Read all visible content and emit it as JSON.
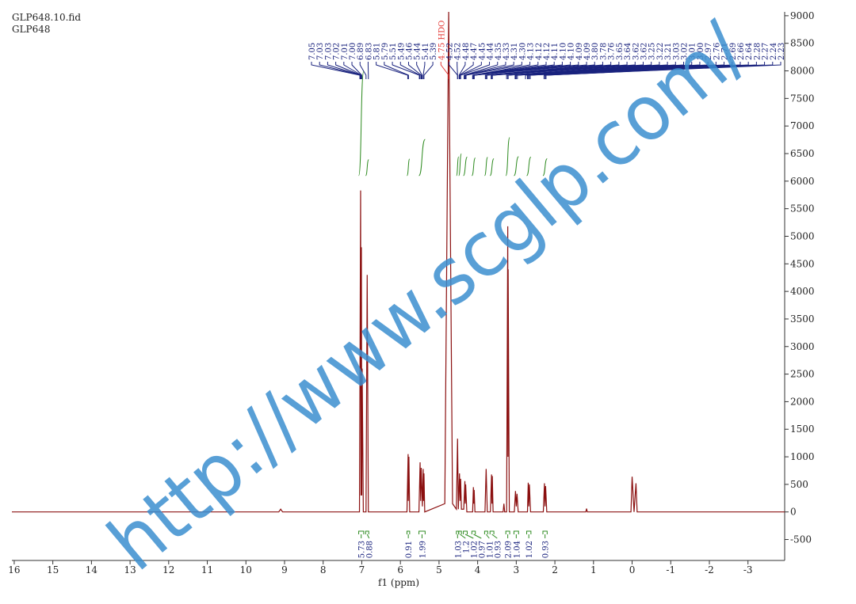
{
  "chart_data": {
    "type": "line",
    "title": "GLP648.10.fid",
    "subtitle": "GLP648",
    "x_label": "f1 (ppm)",
    "watermark": "http://www.scglp.com/",
    "xlim": [
      16.06,
      -3.95
    ],
    "xticks": [
      16,
      15,
      14,
      13,
      12,
      11,
      10,
      9,
      8,
      7,
      6,
      5,
      4,
      3,
      2,
      1,
      0,
      -1,
      -2,
      -3
    ],
    "ylim": [
      -880,
      9070
    ],
    "yticks": [
      -500,
      0,
      500,
      1000,
      1500,
      2000,
      2500,
      3000,
      3500,
      4000,
      4500,
      5000,
      5500,
      6000,
      6500,
      7000,
      7500,
      8000,
      8500,
      9000
    ],
    "series": [
      {
        "name": "GLP648",
        "color": "#8b1010",
        "x": [
          16.06,
          9.15,
          9.1,
          9.05,
          7.06,
          7.03,
          7.02,
          7.01,
          7.0,
          6.99,
          6.96,
          6.89,
          6.86,
          6.83,
          5.83,
          5.8,
          5.795,
          5.78,
          5.76,
          5.52,
          5.49,
          5.475,
          5.46,
          5.43,
          5.41,
          5.4,
          5.39,
          5.37,
          4.85,
          4.75,
          4.65,
          4.55,
          4.52,
          4.5,
          4.47,
          4.455,
          4.44,
          4.42,
          4.36,
          4.33,
          4.32,
          4.31,
          4.28,
          4.13,
          4.11,
          4.1,
          4.09,
          4.07,
          3.81,
          3.78,
          3.75,
          3.67,
          3.64,
          3.63,
          3.62,
          3.6,
          3.34,
          3.32,
          3.3,
          3.25,
          3.22,
          3.215,
          3.21,
          3.18,
          3.05,
          3.02,
          3.0,
          2.98,
          2.95,
          2.71,
          2.69,
          2.675,
          2.66,
          2.63,
          2.3,
          2.27,
          2.255,
          2.24,
          2.21,
          1.2,
          1.18,
          1.16,
          0.03,
          0.0,
          -0.05,
          -0.1,
          -0.13,
          -3.95
        ],
        "values": [
          0,
          0,
          50,
          0,
          0,
          5830,
          300,
          4800,
          300,
          2600,
          0,
          0,
          4300,
          0,
          0,
          1050,
          200,
          1000,
          0,
          0,
          900,
          200,
          800,
          100,
          780,
          200,
          700,
          0,
          150,
          9070,
          150,
          50,
          1330,
          50,
          700,
          200,
          600,
          50,
          50,
          560,
          150,
          500,
          0,
          0,
          450,
          150,
          400,
          0,
          0,
          780,
          0,
          0,
          680,
          150,
          650,
          0,
          0,
          150,
          0,
          0,
          5180,
          1000,
          4400,
          0,
          0,
          380,
          100,
          330,
          0,
          0,
          530,
          100,
          500,
          0,
          0,
          520,
          100,
          470,
          0,
          0,
          60,
          0,
          0,
          640,
          0,
          520,
          0,
          0
        ]
      }
    ],
    "peak_color": "#1a237e",
    "integral_color": "#2e8b20",
    "peaks": [
      {
        "value": 7.05,
        "label": "7.05"
      },
      {
        "value": 7.03,
        "label": "7.03"
      },
      {
        "value": 7.03,
        "label": "7.03"
      },
      {
        "value": 7.02,
        "label": "7.02"
      },
      {
        "value": 7.01,
        "label": "7.01"
      },
      {
        "value": 7.0,
        "label": "7.00"
      },
      {
        "value": 6.89,
        "label": "6.89"
      },
      {
        "value": 6.83,
        "label": "6.83"
      },
      {
        "value": 5.81,
        "label": "5.81"
      },
      {
        "value": 5.79,
        "label": "5.79"
      },
      {
        "value": 5.51,
        "label": "5.51"
      },
      {
        "value": 5.49,
        "label": "5.49"
      },
      {
        "value": 5.46,
        "label": "5.46"
      },
      {
        "value": 5.44,
        "label": "5.44"
      },
      {
        "value": 5.41,
        "label": "5.41"
      },
      {
        "value": 5.39,
        "label": "5.39"
      },
      {
        "value": 4.75,
        "label": "4.75 HDO",
        "color": "#e53935"
      },
      {
        "value": 4.52,
        "label": "4.52"
      },
      {
        "value": 4.52,
        "label": "4.52"
      },
      {
        "value": 4.48,
        "label": "4.48"
      },
      {
        "value": 4.47,
        "label": "4.47"
      },
      {
        "value": 4.45,
        "label": "4.45"
      },
      {
        "value": 4.44,
        "label": "4.44"
      },
      {
        "value": 4.35,
        "label": "4.35"
      },
      {
        "value": 4.33,
        "label": "4.33"
      },
      {
        "value": 4.31,
        "label": "4.31"
      },
      {
        "value": 4.3,
        "label": "4.30"
      },
      {
        "value": 4.13,
        "label": "4.13"
      },
      {
        "value": 4.12,
        "label": "4.12"
      },
      {
        "value": 4.12,
        "label": "4.12"
      },
      {
        "value": 4.11,
        "label": "4.11"
      },
      {
        "value": 4.1,
        "label": "4.10"
      },
      {
        "value": 4.1,
        "label": "4.10"
      },
      {
        "value": 4.09,
        "label": "4.09"
      },
      {
        "value": 4.09,
        "label": "4.09"
      },
      {
        "value": 3.8,
        "label": "3.80"
      },
      {
        "value": 3.78,
        "label": "3.78"
      },
      {
        "value": 3.76,
        "label": "3.76"
      },
      {
        "value": 3.65,
        "label": "3.65"
      },
      {
        "value": 3.64,
        "label": "3.64"
      },
      {
        "value": 3.62,
        "label": "3.62"
      },
      {
        "value": 3.62,
        "label": "3.62"
      },
      {
        "value": 3.25,
        "label": "3.25"
      },
      {
        "value": 3.22,
        "label": "3.22"
      },
      {
        "value": 3.21,
        "label": "3.21"
      },
      {
        "value": 3.03,
        "label": "3.03"
      },
      {
        "value": 3.02,
        "label": "3.02"
      },
      {
        "value": 3.01,
        "label": "3.01"
      },
      {
        "value": 3.0,
        "label": "3.00"
      },
      {
        "value": 2.97,
        "label": "2.97"
      },
      {
        "value": 2.76,
        "label": "2.76"
      },
      {
        "value": 2.71,
        "label": "2.71"
      },
      {
        "value": 2.69,
        "label": "2.69"
      },
      {
        "value": 2.66,
        "label": "2.66"
      },
      {
        "value": 2.64,
        "label": "2.64"
      },
      {
        "value": 2.28,
        "label": "2.28"
      },
      {
        "value": 2.27,
        "label": "2.27"
      },
      {
        "value": 2.24,
        "label": "2.24"
      },
      {
        "value": 2.23,
        "label": "2.23"
      }
    ],
    "integrals": [
      {
        "value": 5.73,
        "range": [
          7.08,
          6.95
        ]
      },
      {
        "value": 0.88,
        "range": [
          6.9,
          6.82
        ]
      },
      {
        "value": 0.91,
        "range": [
          5.83,
          5.76
        ]
      },
      {
        "value": 1.99,
        "range": [
          5.52,
          5.36
        ]
      },
      {
        "value": 1.03,
        "range": [
          4.55,
          4.49
        ]
      },
      {
        "value": 1.2,
        "range": [
          4.49,
          4.42
        ]
      },
      {
        "value": 1.02,
        "range": [
          4.37,
          4.27
        ]
      },
      {
        "value": 0.97,
        "range": [
          4.15,
          4.06
        ]
      },
      {
        "value": 1.01,
        "range": [
          3.82,
          3.74
        ]
      },
      {
        "value": 0.93,
        "range": [
          3.68,
          3.58
        ]
      },
      {
        "value": 2.09,
        "range": [
          3.27,
          3.17
        ]
      },
      {
        "value": 1.04,
        "range": [
          3.06,
          2.94
        ]
      },
      {
        "value": 1.02,
        "range": [
          2.73,
          2.62
        ]
      },
      {
        "value": 0.93,
        "range": [
          2.31,
          2.2
        ]
      }
    ]
  }
}
